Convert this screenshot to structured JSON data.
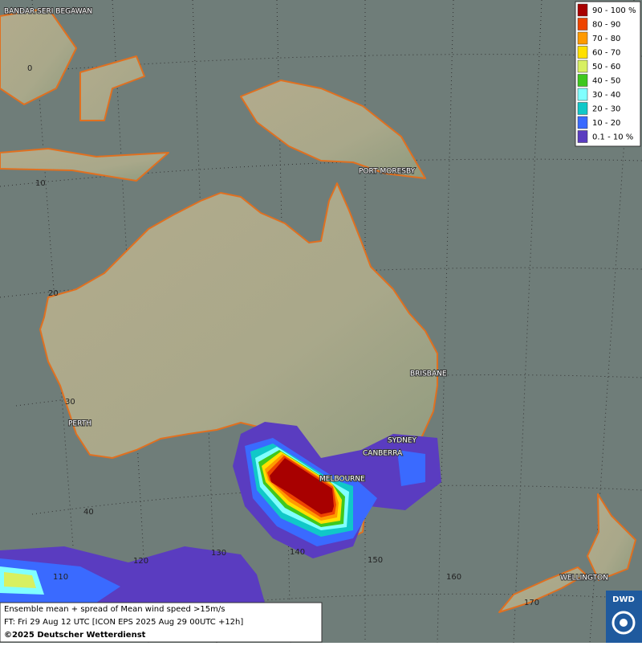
{
  "map": {
    "places": [
      "BANDAR SERI BEGAWAN",
      "PORT MORESBY",
      "BRISBANE",
      "PERTH",
      "SYDNEY",
      "CANBERRA",
      "MELBOURNE",
      "WELLINGTON"
    ],
    "latitude_labels": [
      "0",
      "10",
      "20",
      "30",
      "40"
    ],
    "longitude_labels": [
      "110",
      "120",
      "130",
      "140",
      "150",
      "160",
      "170"
    ]
  },
  "legend": {
    "items": [
      {
        "label": "90 - 100 %",
        "color": "#a80000"
      },
      {
        "label": "80 - 90",
        "color": "#ee4400"
      },
      {
        "label": "70 - 80",
        "color": "#ff9a00"
      },
      {
        "label": "60 - 70",
        "color": "#ffe000"
      },
      {
        "label": "50 - 60",
        "color": "#d8f060"
      },
      {
        "label": "40 - 50",
        "color": "#3ec81e"
      },
      {
        "label": "30 - 40",
        "color": "#80ffff"
      },
      {
        "label": "20 - 30",
        "color": "#10c8c8"
      },
      {
        "label": "10 - 20",
        "color": "#3a6aff"
      },
      {
        "label": "0.1 - 10 %",
        "color": "#5a3cc0"
      }
    ]
  },
  "footer": {
    "line1": "Ensemble mean + spread of Mean wind speed >15m/s",
    "line2": "FT: Fri 29 Aug 12 UTC [ICON EPS 2025 Aug 29 00UTC +12h]",
    "line3": "©2025 Deutscher Wetterdienst"
  },
  "logo": "DWD"
}
